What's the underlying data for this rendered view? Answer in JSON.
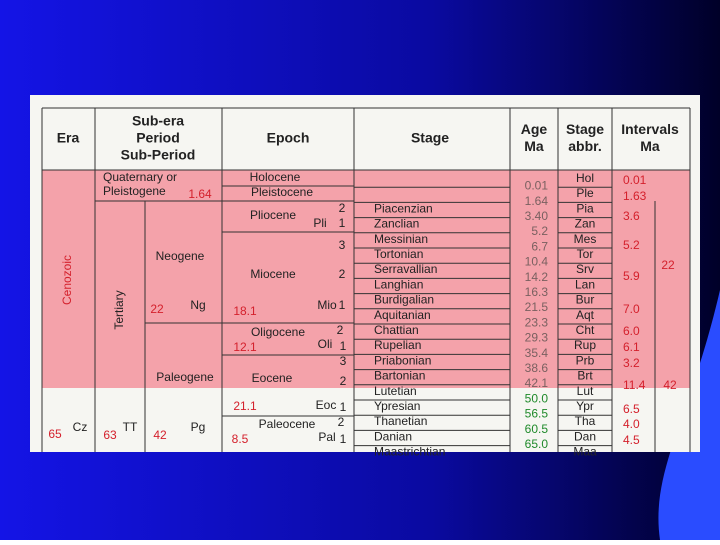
{
  "table": {
    "headers": [
      [
        "Era"
      ],
      [
        "Sub-era",
        "Period",
        "Sub-Period"
      ],
      [
        "Epoch"
      ],
      [
        "Stage"
      ],
      [
        "Age",
        "Ma"
      ],
      [
        "Stage",
        "abbr."
      ],
      [
        "Intervals",
        "Ma"
      ]
    ],
    "stages": [
      "Holocene",
      "Pleistocene",
      "Piacenzian",
      "Zanclian",
      "Messinian",
      "Tortonian",
      "Serravallian",
      "Langhian",
      "Burdigalian",
      "Aquitanian",
      "Chattian",
      "Rupelian",
      "Priabonian",
      "Bartonian",
      "Lutetian",
      "Ypresian",
      "Thanetian",
      "Danian",
      "Maastrichtian"
    ],
    "abbrs": [
      "Hol",
      "Ple",
      "Pia",
      "Zan",
      "Mes",
      "Tor",
      "Srv",
      "Lan",
      "Bur",
      "Aqt",
      "Cht",
      "Rup",
      "Prb",
      "Brt",
      "Lut",
      "Ypr",
      "Tha",
      "Dan",
      "Maa"
    ],
    "ages": [
      "0.01",
      "1.64",
      "3.40",
      "5.2",
      "6.7",
      "10.4",
      "14.2",
      "16.3",
      "21.5",
      "23.3",
      "29.3",
      "35.4",
      "38.6",
      "42.1",
      "50.0",
      "56.5",
      "60.5",
      "65.0"
    ],
    "intervals": [
      "0.01",
      "1.63",
      "3.6",
      "5.2",
      "5.9",
      "7.0",
      "6.0",
      "6.1",
      "3.2",
      "11.4",
      "6.5",
      "4.0",
      "4.5"
    ],
    "interval_totals": [
      "22",
      "42"
    ],
    "era": [
      "Cenozoic",
      "65",
      "Cz"
    ],
    "sub_era": [
      "Quaternary or",
      "Pleistogene",
      "1.64",
      "Tertiary",
      "Neogene",
      "22",
      "Ng",
      "Paleogene",
      "63",
      "TT",
      "42",
      "Pg"
    ],
    "epoch": [
      "Holocene",
      "Pleistocene",
      "Pliocene",
      "2",
      "Pli",
      "1",
      "Miocene",
      "3",
      "2",
      "18.1",
      "Mio",
      "1",
      "Oligocene",
      "2",
      "12.1",
      "Oli",
      "1",
      "3",
      "Eocene",
      "2",
      "21.1",
      "Eoc",
      "1",
      "Paleocene",
      "2",
      "8.5",
      "Pal",
      "1"
    ]
  }
}
